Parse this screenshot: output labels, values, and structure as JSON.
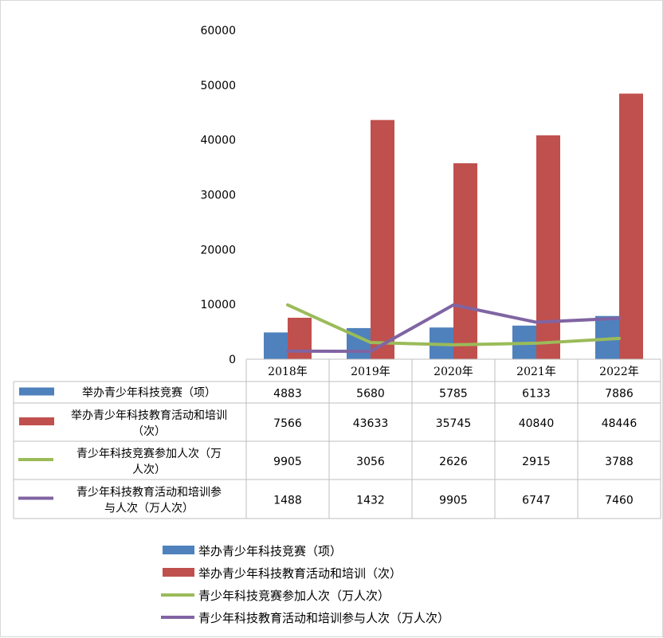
{
  "chart_data": {
    "type": "bar",
    "categories": [
      "2018年",
      "2019年",
      "2020年",
      "2021年",
      "2022年"
    ],
    "y_ticks": [
      "0",
      "10000",
      "20000",
      "30000",
      "40000",
      "50000",
      "60000"
    ],
    "ylim": [
      0,
      60000
    ],
    "legend_position": "bottom",
    "grid": false,
    "series": [
      {
        "name": "举办青少年科技竞赛（项）",
        "table_label_lines": [
          "举办青少年科技竞赛（项）"
        ],
        "kind": "bar",
        "color": "#4f81bd",
        "values": [
          4883,
          5680,
          5785,
          6133,
          7886
        ]
      },
      {
        "name": "举办青少年科技教育活动和培训（次）",
        "table_label_lines": [
          "举办青少年科技教育活动和培训",
          "（次）"
        ],
        "kind": "bar",
        "color": "#c0504d",
        "values": [
          7566,
          43633,
          35745,
          40840,
          48446
        ]
      },
      {
        "name": "青少年科技竞赛参加人次（万人次）",
        "table_label_lines": [
          "青少年科技竞赛参加人次（万",
          "人次）"
        ],
        "kind": "line",
        "color": "#9bbb59",
        "values": [
          9905,
          3056,
          2626,
          2915,
          3788
        ]
      },
      {
        "name": "青少年科技教育活动和培训参与人次（万人次）",
        "table_label_lines": [
          "青少年科技教育活动和培训参",
          "与人次（万人次）"
        ],
        "kind": "line",
        "color": "#8064a2",
        "values": [
          1488,
          1432,
          9905,
          6747,
          7460
        ]
      }
    ]
  }
}
